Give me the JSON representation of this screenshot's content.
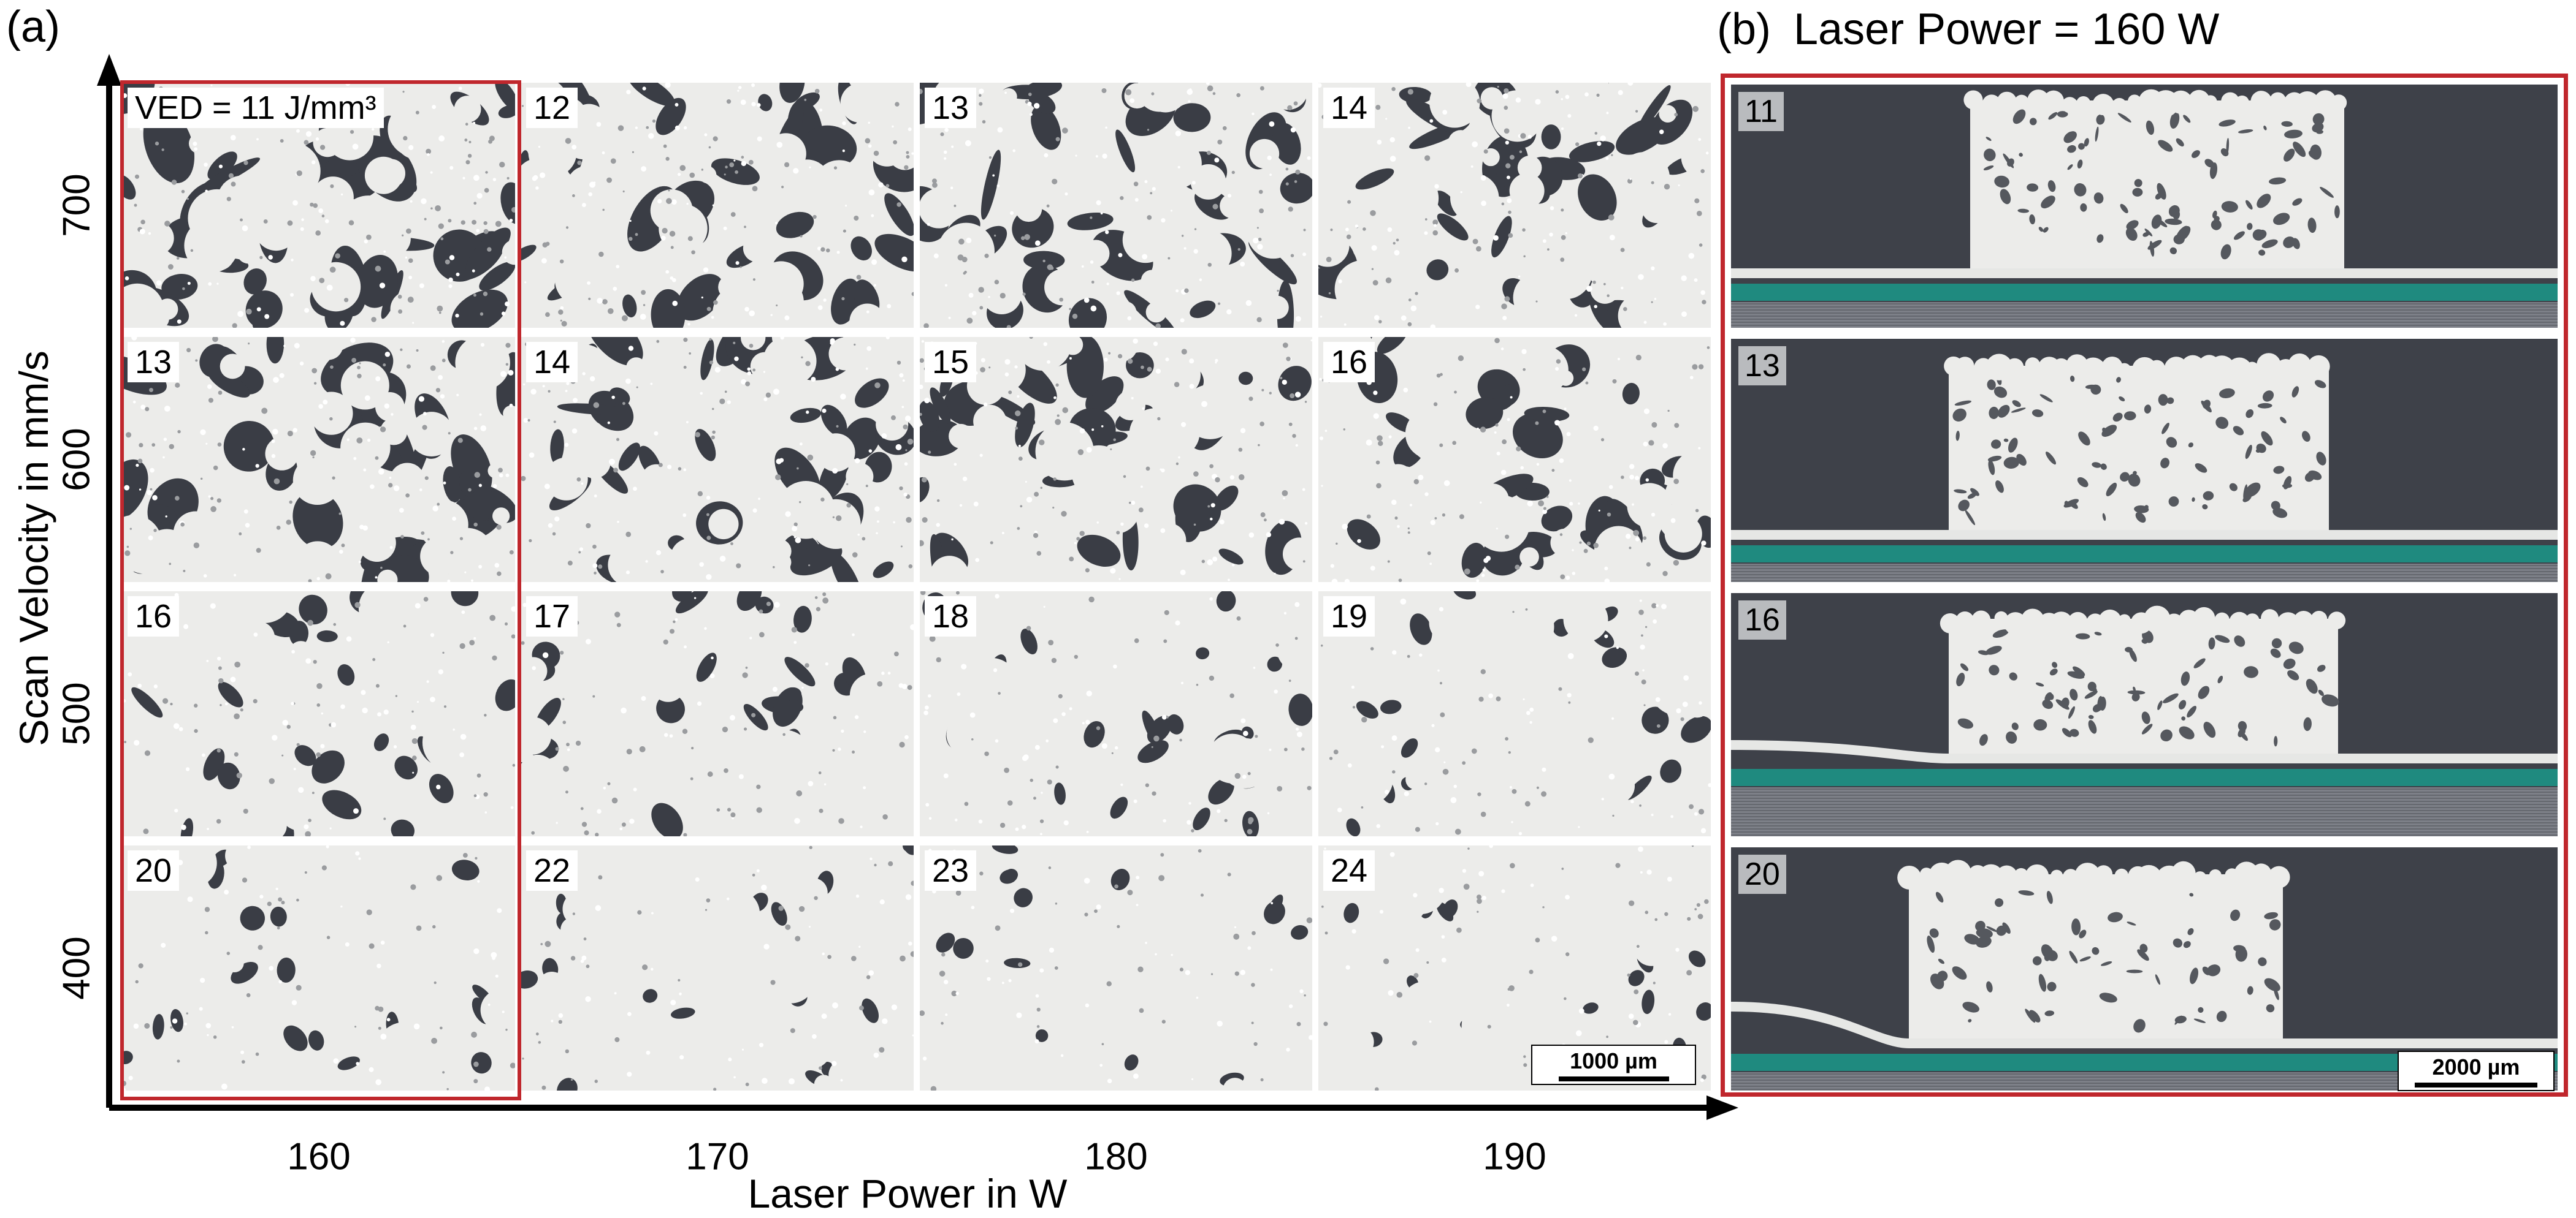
{
  "panel_a": {
    "label": "(a)",
    "y_axis_title": "Scan Velocity in mm/s",
    "x_axis_title": "Laser Power in W",
    "x_ticks": [
      "160",
      "170",
      "180",
      "190"
    ],
    "y_ticks": [
      "700",
      "600",
      "500",
      "400"
    ],
    "scale_bar": "1000 µm",
    "tiles": [
      [
        "VED = 11 J/mm³",
        "12",
        "13",
        "14"
      ],
      [
        "13",
        "14",
        "15",
        "16"
      ],
      [
        "16",
        "17",
        "18",
        "19"
      ],
      [
        "20",
        "22",
        "23",
        "24"
      ]
    ],
    "highlight_color": "#c0272d"
  },
  "panel_b": {
    "label": "(b)",
    "title": "Laser Power = 160 W",
    "scale_bar": "2000 µm",
    "sections": [
      "11",
      "13",
      "16",
      "20"
    ],
    "highlight_color": "#c0272d"
  },
  "colors": {
    "matrix": "#3a3d45",
    "particle": "#ececea",
    "mount": "#3e4149",
    "substrate_teal": "#1f8a7f"
  }
}
